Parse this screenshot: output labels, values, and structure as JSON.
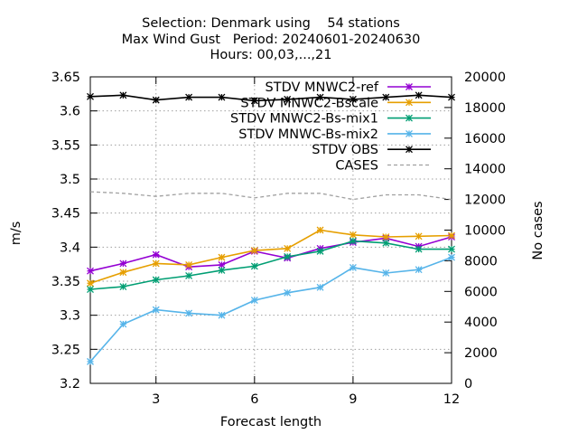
{
  "chart_data": {
    "type": "line",
    "title_lines": [
      "Selection: Denmark using    54 stations",
      "Max Wind Gust   Period: 20240601-20240630",
      "Hours: 00,03,...,21"
    ],
    "xlabel": "Forecast length",
    "ylabel": "m/s",
    "y2label": "No cases",
    "xlim": [
      1,
      12
    ],
    "ylim": [
      3.2,
      3.65
    ],
    "y2lim": [
      0,
      20000
    ],
    "x_ticks": [
      3,
      6,
      9,
      12
    ],
    "y_ticks": [
      3.2,
      3.25,
      3.3,
      3.35,
      3.4,
      3.45,
      3.5,
      3.55,
      3.6,
      3.65
    ],
    "y_tick_labels": [
      "3.2",
      "3.25",
      "3.3",
      "3.35",
      "3.4",
      "3.45",
      "3.5",
      "3.55",
      "3.6",
      "3.65"
    ],
    "y2_ticks": [
      0,
      2000,
      4000,
      6000,
      8000,
      10000,
      12000,
      14000,
      16000,
      18000,
      20000
    ],
    "grid": true,
    "legend_position": "top-right",
    "x": [
      1,
      2,
      3,
      4,
      5,
      6,
      7,
      8,
      9,
      10,
      11,
      12
    ],
    "series": [
      {
        "name": "STDV MNWC2-ref",
        "color": "#9400d3",
        "axis": "y",
        "dashed": false,
        "values": [
          3.365,
          3.376,
          3.389,
          3.371,
          3.374,
          3.394,
          3.384,
          3.398,
          3.407,
          3.413,
          3.401,
          3.415
        ]
      },
      {
        "name": "STDV MNWC2-Bscale",
        "color": "#e69f00",
        "axis": "y",
        "dashed": false,
        "values": [
          3.347,
          3.363,
          3.376,
          3.374,
          3.385,
          3.395,
          3.398,
          3.425,
          3.418,
          3.415,
          3.416,
          3.417
        ]
      },
      {
        "name": "STDV MNWC2-Bs-mix1",
        "color": "#009e73",
        "axis": "y",
        "dashed": false,
        "values": [
          3.338,
          3.342,
          3.352,
          3.358,
          3.366,
          3.372,
          3.386,
          3.394,
          3.409,
          3.406,
          3.397,
          3.397
        ]
      },
      {
        "name": "STDV MNWC-Bs-mix2",
        "color": "#56b4e9",
        "axis": "y",
        "dashed": false,
        "values": [
          3.232,
          3.287,
          3.308,
          3.303,
          3.3,
          3.322,
          3.333,
          3.341,
          3.37,
          3.362,
          3.367,
          3.385
        ]
      },
      {
        "name": "STDV OBS",
        "color": "#000000",
        "axis": "y",
        "dashed": false,
        "values": [
          3.621,
          3.623,
          3.616,
          3.62,
          3.62,
          3.615,
          3.617,
          3.62,
          3.617,
          3.62,
          3.623,
          3.62
        ]
      },
      {
        "name": "CASES",
        "color": "#a0a0a0",
        "axis": "y2",
        "dashed": true,
        "values": [
          12500,
          12400,
          12200,
          12400,
          12400,
          12100,
          12400,
          12400,
          12000,
          12300,
          12300,
          12000
        ]
      }
    ]
  }
}
